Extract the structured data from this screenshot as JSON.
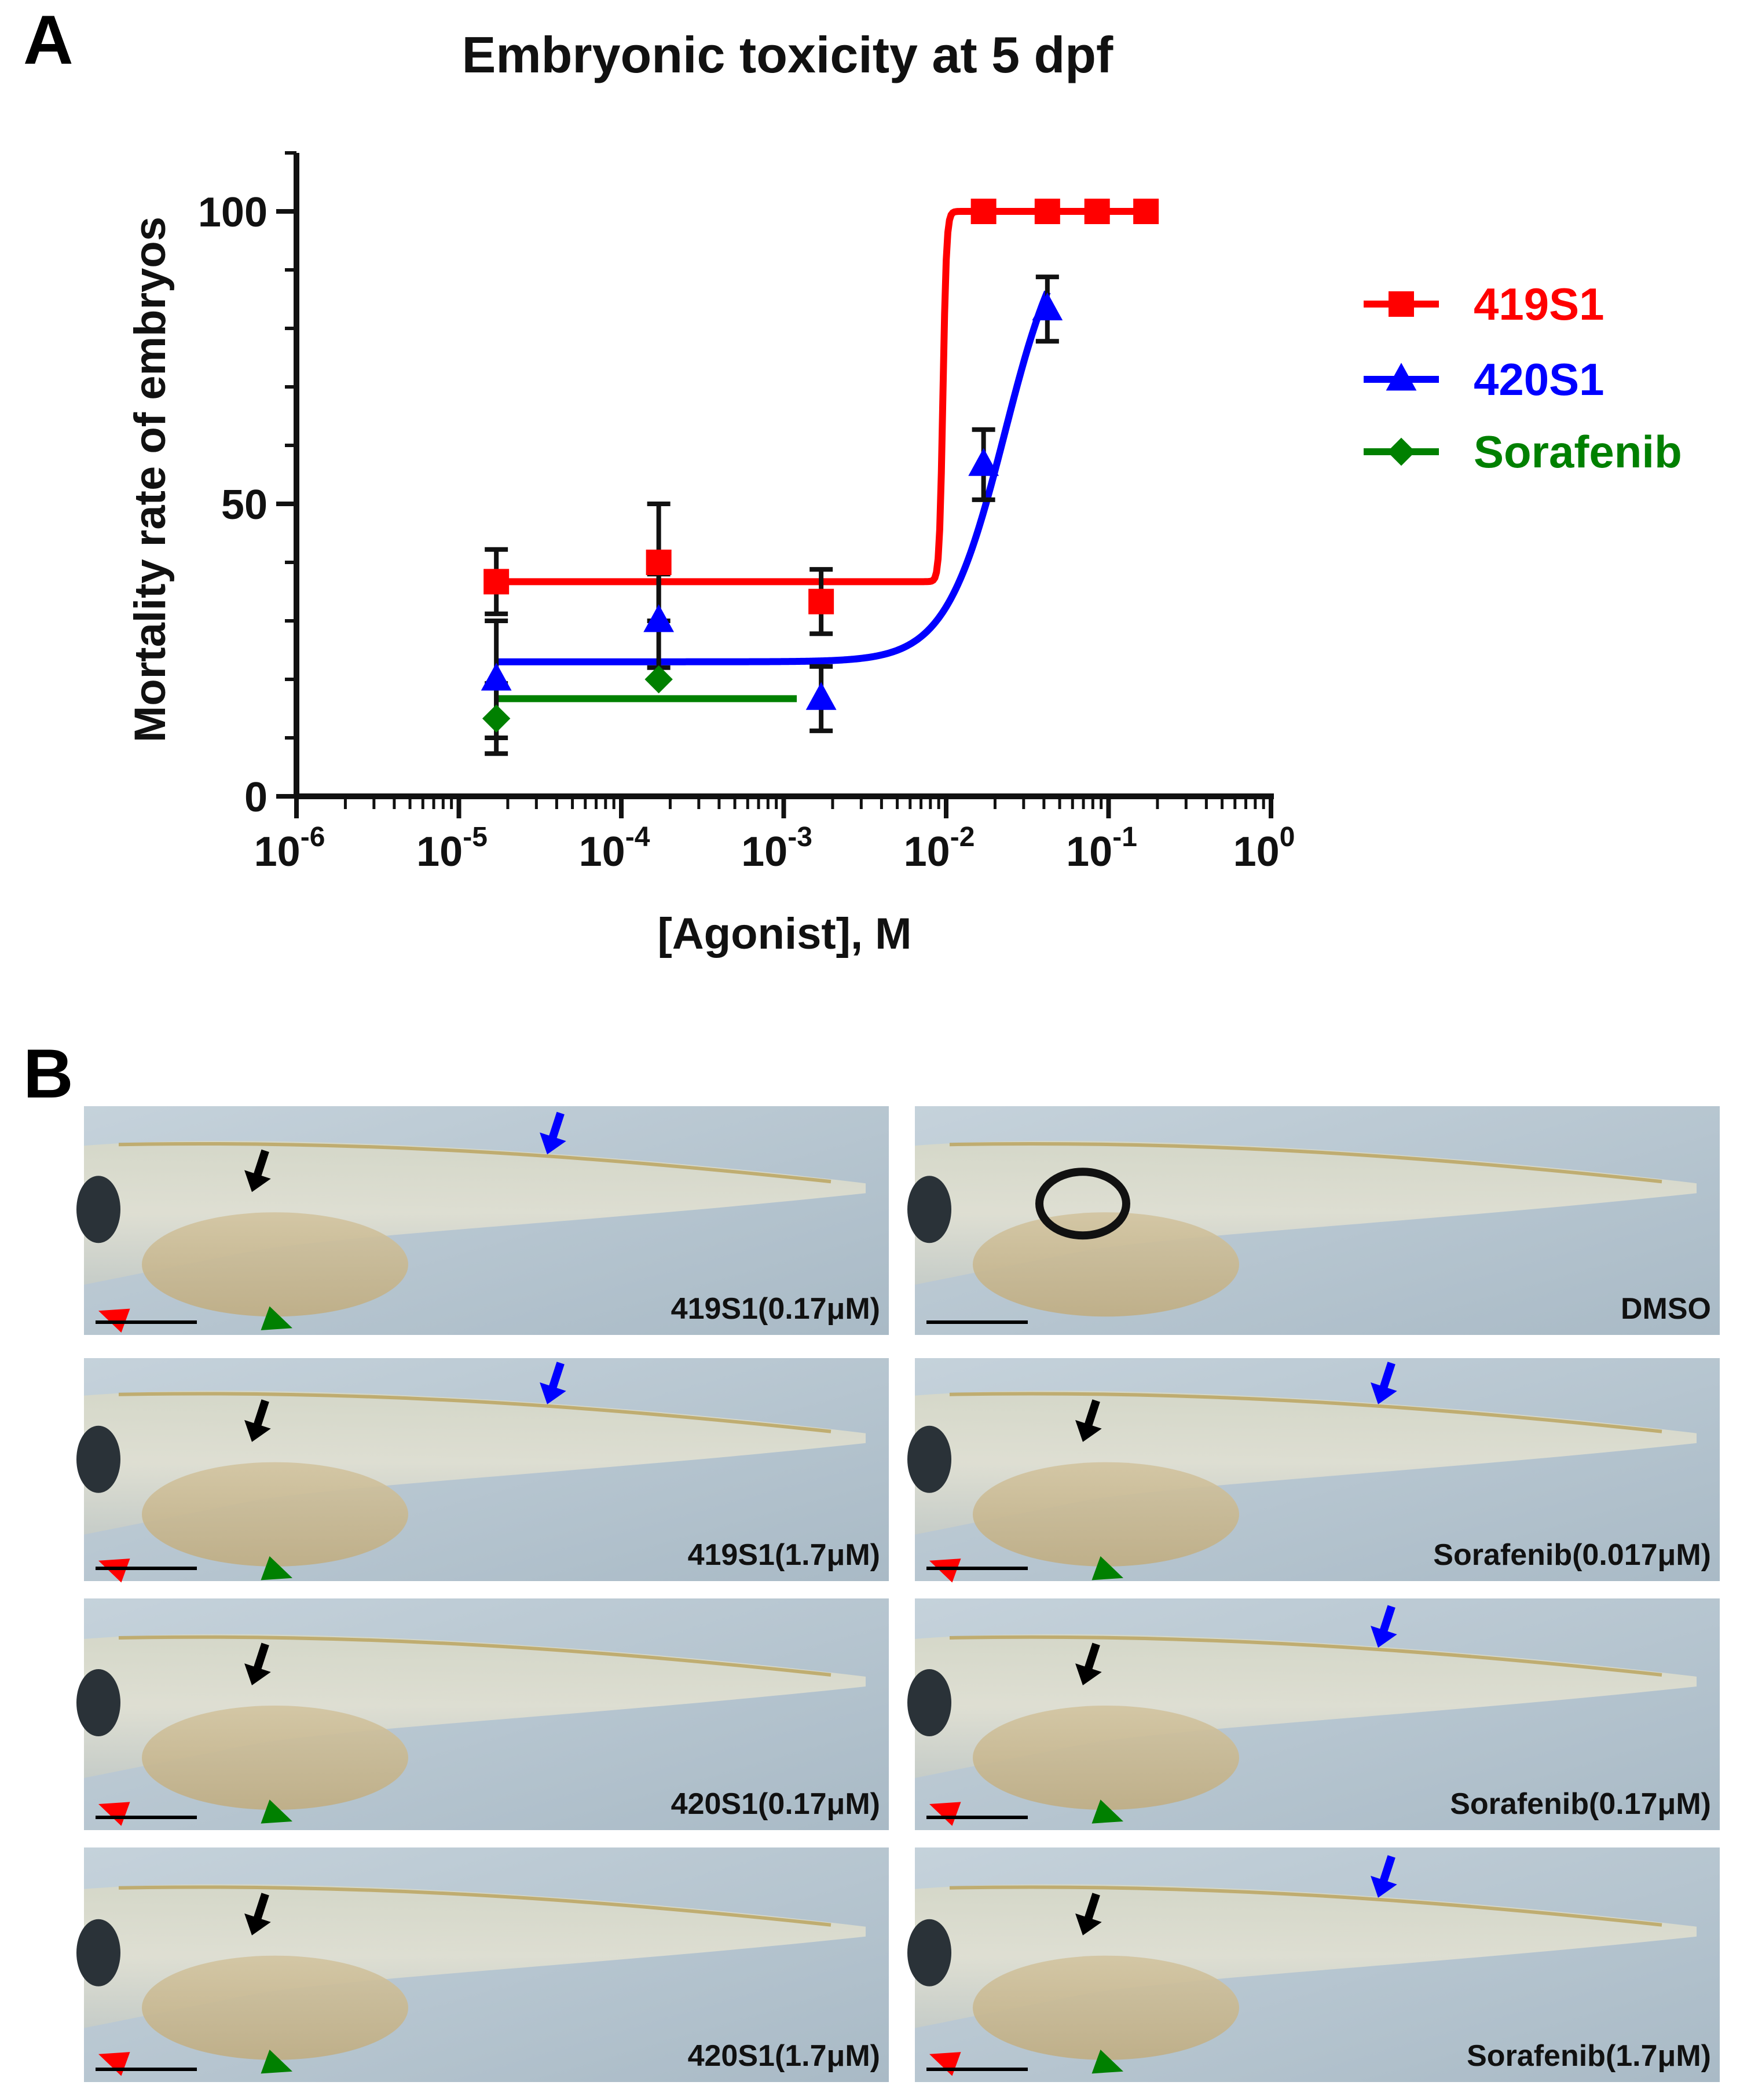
{
  "panels": {
    "a_letter": "A",
    "b_letter": "B"
  },
  "chart_data": {
    "type": "scatter",
    "title": "Embryonic toxicity at 5 dpf",
    "xlabel": "[Agonist], M",
    "ylabel": "Mortality rate of embryos",
    "x_scale": "log",
    "xlim": [
      1e-06,
      1
    ],
    "ylim": [
      0,
      110
    ],
    "x_ticks": [
      {
        "base": "10",
        "exp": "-6"
      },
      {
        "base": "10",
        "exp": "-5"
      },
      {
        "base": "10",
        "exp": "-4"
      },
      {
        "base": "10",
        "exp": "-3"
      },
      {
        "base": "10",
        "exp": "-2"
      },
      {
        "base": "10",
        "exp": "-1"
      },
      {
        "base": "10",
        "exp": "0"
      }
    ],
    "y_ticks": [
      "0",
      "50",
      "100"
    ],
    "legend_position": "right",
    "series": [
      {
        "name": "419S1",
        "color": "#ff0000",
        "marker": "square",
        "x": [
          1.7e-05,
          0.00017,
          0.0017,
          0.017,
          0.042,
          0.085,
          0.17
        ],
        "y": [
          36.7,
          40,
          33.3,
          100,
          100,
          100,
          100
        ],
        "err": [
          5.5,
          10,
          5.5,
          0,
          0,
          0,
          0
        ],
        "fit": {
          "bottom": 36.7,
          "top": 100,
          "logEC50": -2.02,
          "hill": 40
        }
      },
      {
        "name": "420S1",
        "color": "#0000ff",
        "marker": "triangle",
        "x": [
          1.7e-05,
          0.00017,
          0.0017,
          0.017,
          0.042
        ],
        "y": [
          20,
          30,
          16.7,
          56.7,
          83.3
        ],
        "err": [
          10,
          8,
          5.5,
          6,
          5.5
        ],
        "fit": {
          "bottom": 23,
          "top": 101,
          "logEC50": -1.64,
          "hill": 2.4
        }
      },
      {
        "name": "Sorafenib",
        "color": "#008000",
        "marker": "diamond",
        "x": [
          1.7e-05,
          0.00017
        ],
        "y": [
          13.3,
          20
        ],
        "err": [
          6,
          0
        ],
        "fit": {
          "bottom": 16.7,
          "top": 100,
          "logEC50": -2.3,
          "hill": 12
        }
      }
    ]
  },
  "panel_b": {
    "images": [
      {
        "label": "419S1(0.17μM)"
      },
      {
        "label": "DMSO"
      },
      {
        "label": "419S1(1.7μM)"
      },
      {
        "label": "Sorafenib(0.017μM)"
      },
      {
        "label": "420S1(0.17μM)"
      },
      {
        "label": "Sorafenib(0.17μM)"
      },
      {
        "label": "420S1(1.7μM)"
      },
      {
        "label": "Sorafenib(1.7μM)"
      }
    ],
    "arrow_colors": {
      "black": "#000000",
      "blue": "#0000ff",
      "red": "#ff0000",
      "green": "#008000"
    }
  }
}
